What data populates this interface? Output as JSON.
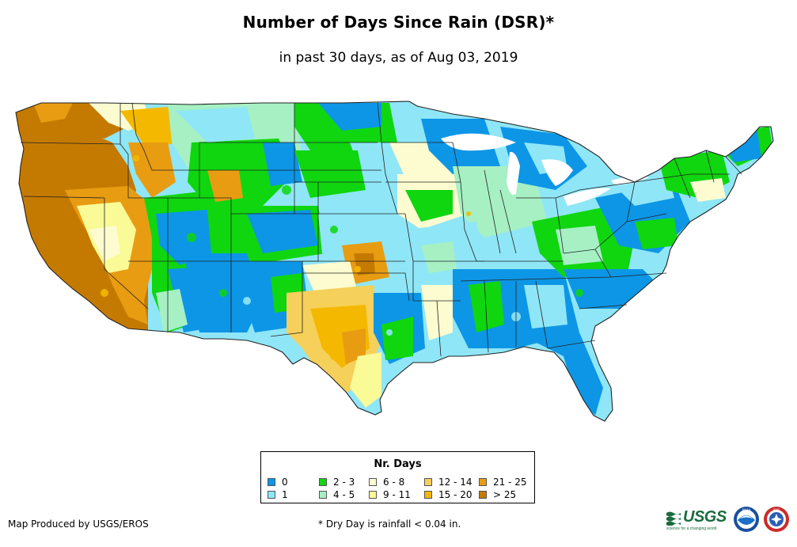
{
  "header": {
    "title": "Number of Days Since Rain (DSR)*",
    "subtitle": "in past 30 days, as of Aug 03, 2019"
  },
  "legend": {
    "title": "Nr. Days",
    "items": [
      {
        "label": "0",
        "color": "#0d96e6"
      },
      {
        "label": "1",
        "color": "#8fe6f7"
      },
      {
        "label": "2 - 3",
        "color": "#0fd60f"
      },
      {
        "label": "4 - 5",
        "color": "#a6f0c4"
      },
      {
        "label": "6 - 8",
        "color": "#fcfcd0"
      },
      {
        "label": "9 - 11",
        "color": "#fafa96"
      },
      {
        "label": "12 - 14",
        "color": "#f5d05a"
      },
      {
        "label": "15 - 20",
        "color": "#f5b800"
      },
      {
        "label": "21 - 25",
        "color": "#e89c12"
      },
      {
        "label": "> 25",
        "color": "#c47a00"
      }
    ]
  },
  "footer": {
    "producer": "Map Produced by USGS/EROS",
    "footnote": "* Dry Day is rainfall < 0.04 in."
  },
  "logos": {
    "usgs_text": "USGS",
    "usgs_tagline": "science for a changing world",
    "noaa_text": "NOAA",
    "nws_text": "NWS"
  },
  "icons": [
    "usgs-logo-icon",
    "noaa-logo-icon",
    "nws-logo-icon"
  ]
}
